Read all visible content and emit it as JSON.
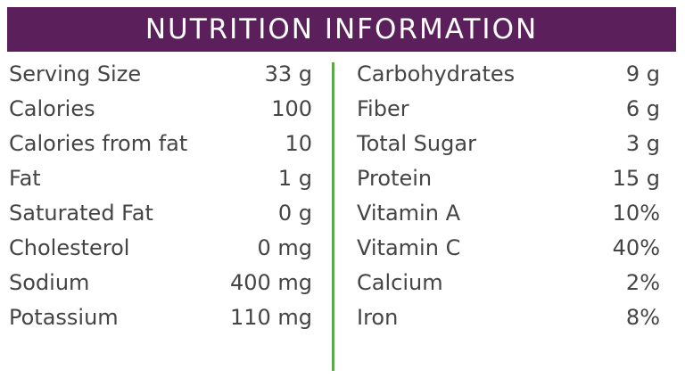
{
  "header": {
    "title": "NUTRITION INFORMATION"
  },
  "left": [
    [
      "Serving Size",
      "33 g"
    ],
    [
      "Calories",
      "100"
    ],
    [
      "Calories from fat",
      "10"
    ],
    [
      "Fat",
      "1 g"
    ],
    [
      "Saturated Fat",
      "0 g"
    ],
    [
      "Cholesterol",
      "0 mg"
    ],
    [
      "Sodium",
      "400 mg"
    ],
    [
      "Potassium",
      "110 mg"
    ]
  ],
  "right": [
    [
      "Carbohydrates",
      "9 g"
    ],
    [
      "Fiber",
      "6 g"
    ],
    [
      "Total Sugar",
      "3 g"
    ],
    [
      "Protein",
      "15 g"
    ],
    [
      "Vitamin A",
      "10%"
    ],
    [
      "Vitamin C",
      "40%"
    ],
    [
      "Calcium",
      "2%"
    ],
    [
      "Iron",
      "8%"
    ]
  ]
}
